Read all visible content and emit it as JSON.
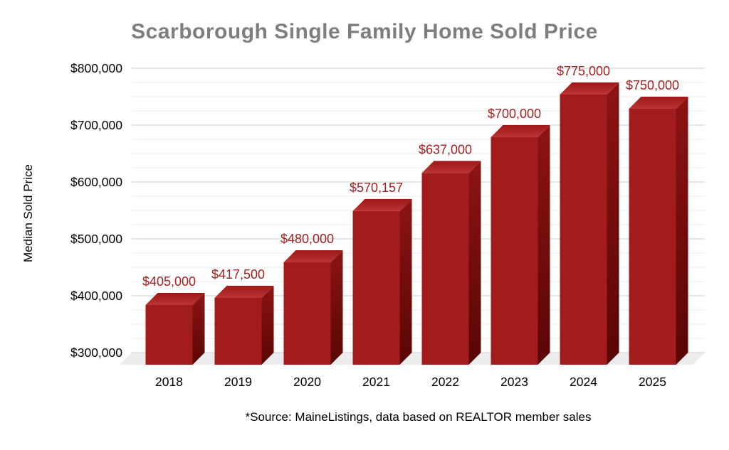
{
  "chart_data": {
    "type": "bar",
    "title": "Scarborough Single Family Home Sold Price",
    "ylabel": "Median Sold Price",
    "xlabel": "",
    "source_note": "*Source: MaineListings, data based on REALTOR member sales",
    "categories": [
      "2018",
      "2019",
      "2020",
      "2021",
      "2022",
      "2023",
      "2024",
      "2025"
    ],
    "values": [
      405000,
      417500,
      480000,
      570157,
      637000,
      700000,
      775000,
      750000
    ],
    "value_labels": [
      "$405,000",
      "$417,500",
      "$480,000",
      "$570,157",
      "$637,000",
      "$700,000",
      "$775,000",
      "$750,000"
    ],
    "y_ticks": [
      {
        "value": 300000,
        "label": "$300,000"
      },
      {
        "value": 400000,
        "label": "$400,000"
      },
      {
        "value": 500000,
        "label": "$500,000"
      },
      {
        "value": 600000,
        "label": "$600,000"
      },
      {
        "value": 700000,
        "label": "$700,000"
      },
      {
        "value": 800000,
        "label": "$800,000"
      }
    ],
    "ylim": [
      300000,
      800000
    ],
    "minor_grid_step": 25000,
    "grid": true,
    "legend_position": "none",
    "style": "3d-columns",
    "colors": {
      "background": "#ffffff",
      "title": "#7e7e7e",
      "axis_text": "#000000",
      "value_label": "#a32020",
      "bar_front": "#a31c1c",
      "bar_top_front": "#bc3434",
      "bar_top_back": "#9e1818",
      "bar_side_top": "#8c1414",
      "bar_side_bottom": "#5a0505",
      "grid_major": "#d7d7d7",
      "grid_minor": "#efefef",
      "floor": "#ededed"
    }
  }
}
